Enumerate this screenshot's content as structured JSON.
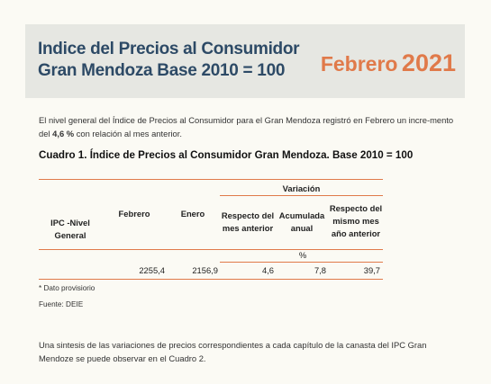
{
  "header": {
    "title_line1": "Indice del Precios al Consumidor",
    "title_line2": "Gran Mendoza Base 2010 = 100",
    "month": "Febrero",
    "year": "2021"
  },
  "intro": {
    "text_before": "El nivel general del Índice de Precios al Consumidor para el Gran Mendoza registró en Febrero un incre-mento del ",
    "highlight": "4,6 %",
    "text_after": " con relación al mes anterior."
  },
  "table": {
    "title": "Cuadro 1. Índice de Precios al Consumidor Gran Mendoza. Base 2010 = 100",
    "col_ipc": "IPC -Nivel General",
    "col_febrero": "Febrero",
    "col_enero": "Enero",
    "col_variacion": "Variación",
    "col_mes_anterior": "Respecto del mes anterior",
    "col_acumulada": "Acumulada anual",
    "col_mismo_mes": "Respecto del mismo mes año anterior",
    "unit": "%",
    "row": {
      "febrero": "2255,4",
      "enero": "2156,9",
      "mes_anterior": "4,6",
      "acumulada": "7,8",
      "mismo_mes": "39,7"
    }
  },
  "notes": {
    "provisional": "* Dato provisiorio",
    "source": "Fuente: DEIE"
  },
  "footer": {
    "text": "Una sintesis de las variaciones de precios correspondientes a cada capítulo de la canasta del IPC Gran Mendoze se puede observar en el Cuadro 2."
  },
  "colors": {
    "accent": "#e07a4a",
    "title_blue": "#2d4a66",
    "header_bg": "#e6e7e2"
  }
}
